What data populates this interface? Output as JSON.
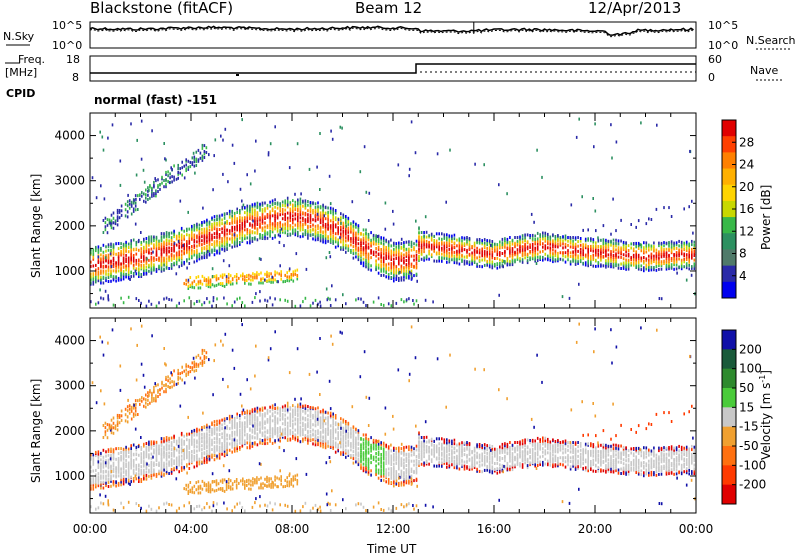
{
  "header": {
    "site": "Blackstone (fitACF)",
    "beam": "Beam 12",
    "date": "12/Apr/2013"
  },
  "left_labels": {
    "nsky": "N.Sky",
    "freq_line1": "Freq.",
    "freq_line2": "[MHz]",
    "cpid": "CPID"
  },
  "right_labels": {
    "nsearch": "N.Search",
    "nave": "Nave"
  },
  "noise_axis": {
    "left_top": "10^5",
    "left_bottom": "10^0",
    "right_top": "10^5",
    "right_bottom": "10^0"
  },
  "freq_axis": {
    "left_ticks": [
      "18",
      "8"
    ],
    "right_ticks": [
      "60",
      "0"
    ]
  },
  "cpid_text": "normal (fast) -151",
  "chart_data": [
    {
      "type": "heatmap",
      "panel": "power",
      "ylabel": "Slant Range [km]",
      "yticks": [
        "4000",
        "3000",
        "2000",
        "1000"
      ],
      "ylim": [
        180,
        4500
      ],
      "colorbar": {
        "label": "Power [dB]",
        "ticks": [
          "28",
          "24",
          "20",
          "16",
          "12",
          "8",
          "4"
        ],
        "colors": [
          "#e00000",
          "#ff4000",
          "#ff8000",
          "#ffb000",
          "#ffd400",
          "#c8d800",
          "#38b848",
          "#2c9060",
          "#507a6a",
          "#2a2aa8",
          "#0000ee"
        ]
      },
      "band_center_km": [
        [
          0,
          1150
        ],
        [
          1,
          1250
        ],
        [
          2,
          1350
        ],
        [
          3,
          1480
        ],
        [
          4,
          1650
        ],
        [
          5,
          1850
        ],
        [
          6,
          2050
        ],
        [
          7,
          2180
        ],
        [
          8,
          2250
        ],
        [
          9,
          2150
        ],
        [
          10,
          1900
        ],
        [
          11,
          1500
        ],
        [
          12,
          1250
        ],
        [
          12.95,
          1300
        ],
        [
          13,
          1600
        ],
        [
          14,
          1550
        ],
        [
          15,
          1480
        ],
        [
          16,
          1400
        ],
        [
          17,
          1520
        ],
        [
          18,
          1580
        ],
        [
          19,
          1500
        ],
        [
          20,
          1450
        ],
        [
          21,
          1400
        ],
        [
          22,
          1350
        ],
        [
          23,
          1380
        ],
        [
          24,
          1400
        ]
      ]
    },
    {
      "type": "heatmap",
      "panel": "velocity",
      "ylabel": "Slant Range [km]",
      "yticks": [
        "4000",
        "3000",
        "2000",
        "1000"
      ],
      "ylim": [
        180,
        4500
      ],
      "colorbar": {
        "label": "Velocity [m s-1]",
        "ticks": [
          "200",
          "100",
          "50",
          "15",
          "-15",
          "-50",
          "-100",
          "-200"
        ],
        "colors": [
          "#1010a8",
          "#1a5a3a",
          "#2e8a2e",
          "#4acb3a",
          "#c8c8c8",
          "#f0a030",
          "#ff7010",
          "#ff3a00",
          "#e00000"
        ]
      },
      "xlabel": "Time UT",
      "xticks": [
        "00:00",
        "04:00",
        "08:00",
        "12:00",
        "16:00",
        "20:00",
        "00:00"
      ],
      "xlim": [
        0,
        24
      ]
    }
  ],
  "colors": {
    "power_high": "#ff0000",
    "power_mid": "#ffa500",
    "power_low": "#0000ff",
    "velocity_zero": "#c8c8c8"
  }
}
